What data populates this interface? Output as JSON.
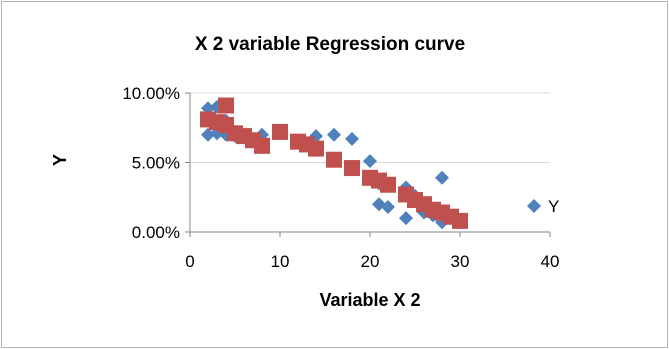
{
  "chart_data": {
    "type": "scatter",
    "title": "X 2 variable Regression curve",
    "xlabel": "Variable X 2",
    "ylabel": "Y",
    "xlim": [
      0,
      40
    ],
    "ylim": [
      0,
      0.1
    ],
    "x_ticks": [
      "0",
      "10",
      "20",
      "30",
      "40"
    ],
    "y_ticks": [
      "0.00%",
      "5.00%",
      "10.00%"
    ],
    "grid": "horizontal major gridlines",
    "legend_position": "right",
    "series": [
      {
        "name": "Y",
        "marker": "diamond",
        "color": "#4f81bd",
        "points": [
          [
            2,
            0.089
          ],
          [
            2,
            0.07
          ],
          [
            3,
            0.09
          ],
          [
            3,
            0.071
          ],
          [
            4,
            0.07
          ],
          [
            4,
            0.08
          ],
          [
            5,
            0.069
          ],
          [
            6,
            0.068
          ],
          [
            7,
            0.066
          ],
          [
            8,
            0.07
          ],
          [
            10,
            0.072
          ],
          [
            12,
            0.065
          ],
          [
            14,
            0.069
          ],
          [
            16,
            0.07
          ],
          [
            18,
            0.067
          ],
          [
            20,
            0.051
          ],
          [
            21,
            0.035
          ],
          [
            21,
            0.02
          ],
          [
            22,
            0.018
          ],
          [
            24,
            0.032
          ],
          [
            24,
            0.01
          ],
          [
            25,
            0.026
          ],
          [
            26,
            0.014
          ],
          [
            27,
            0.012
          ],
          [
            28,
            0.039
          ],
          [
            28,
            0.007
          ],
          [
            29,
            0.011
          ]
        ]
      },
      {
        "name": "",
        "marker": "square",
        "color": "#c0504d",
        "points": [
          [
            2,
            0.081
          ],
          [
            3,
            0.079
          ],
          [
            4,
            0.091
          ],
          [
            4,
            0.077
          ],
          [
            5,
            0.071
          ],
          [
            6,
            0.069
          ],
          [
            7,
            0.066
          ],
          [
            8,
            0.062
          ],
          [
            10,
            0.072
          ],
          [
            12,
            0.065
          ],
          [
            13,
            0.063
          ],
          [
            14,
            0.06
          ],
          [
            16,
            0.052
          ],
          [
            18,
            0.046
          ],
          [
            20,
            0.039
          ],
          [
            21,
            0.037
          ],
          [
            22,
            0.034
          ],
          [
            24,
            0.027
          ],
          [
            25,
            0.023
          ],
          [
            26,
            0.02
          ],
          [
            27,
            0.016
          ],
          [
            28,
            0.014
          ],
          [
            29,
            0.011
          ],
          [
            30,
            0.008
          ]
        ]
      }
    ]
  }
}
